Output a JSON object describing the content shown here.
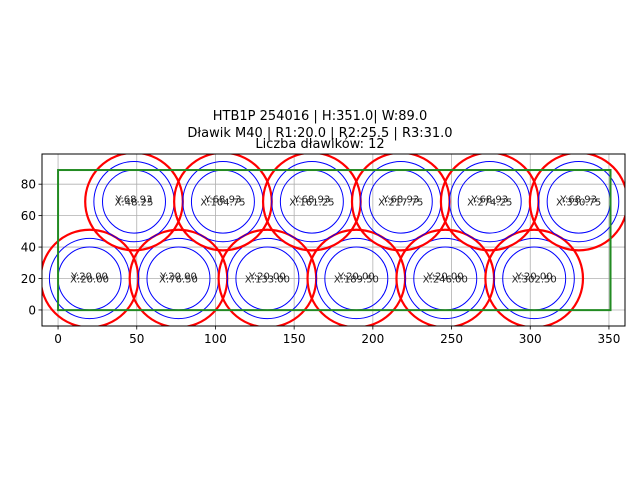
{
  "figure": {
    "title_lines": [
      "HTB1P 254016 | H:351.0| W:89.0",
      "Dławik M40 | R1:20.0 | R2:25.5 | R3:31.0",
      "Liczba dławików: 12"
    ]
  },
  "chart_data": {
    "type": "scatter",
    "title": "HTB1P 254016 | H:351.0| W:89.0 / Dławik M40 | R1:20.0 | R2:25.5 | R3:31.0 / Liczba dławików: 12",
    "xlabel": "",
    "ylabel": "",
    "xlim": [
      -10.2,
      360.2
    ],
    "ylim": [
      -10.2,
      99.2
    ],
    "xticks": [
      0,
      50,
      100,
      150,
      200,
      250,
      300,
      350
    ],
    "yticks": [
      0,
      20,
      40,
      60,
      80
    ],
    "grid": true,
    "rectangle": {
      "x": 0,
      "y": 0,
      "width": 351.0,
      "height": 89.0,
      "color": "#228b22"
    },
    "radii": {
      "R1": 20.0,
      "R2": 25.5,
      "R3": 31.0
    },
    "colors": {
      "R1": "#0000ff",
      "R2": "#0000ff",
      "R3": "#ff0000"
    },
    "points": [
      {
        "x": 20.0,
        "y": 20.0,
        "xlabel": "X:20.00",
        "ylabel": "Y:20.00"
      },
      {
        "x": 76.5,
        "y": 20.0,
        "xlabel": "X:76.50",
        "ylabel": "Y:20.00"
      },
      {
        "x": 133.0,
        "y": 20.0,
        "xlabel": "X:133.00",
        "ylabel": "Y:20.00"
      },
      {
        "x": 189.5,
        "y": 20.0,
        "xlabel": "X:189.50",
        "ylabel": "Y:20.00"
      },
      {
        "x": 246.0,
        "y": 20.0,
        "xlabel": "X:246.00",
        "ylabel": "Y:20.00"
      },
      {
        "x": 302.5,
        "y": 20.0,
        "xlabel": "X:302.50",
        "ylabel": "Y:20.00"
      },
      {
        "x": 48.25,
        "y": 68.93,
        "xlabel": "X:48.25",
        "ylabel": "Y:68.93"
      },
      {
        "x": 104.75,
        "y": 68.93,
        "xlabel": "X:104.75",
        "ylabel": "Y:68.93"
      },
      {
        "x": 161.25,
        "y": 68.93,
        "xlabel": "X:161.25",
        "ylabel": "Y:68.93"
      },
      {
        "x": 217.75,
        "y": 68.93,
        "xlabel": "X:217.75",
        "ylabel": "Y:68.93"
      },
      {
        "x": 274.25,
        "y": 68.93,
        "xlabel": "X:274.25",
        "ylabel": "Y:68.93"
      },
      {
        "x": 330.75,
        "y": 68.93,
        "xlabel": "X:330.75",
        "ylabel": "Y:68.93"
      }
    ]
  }
}
